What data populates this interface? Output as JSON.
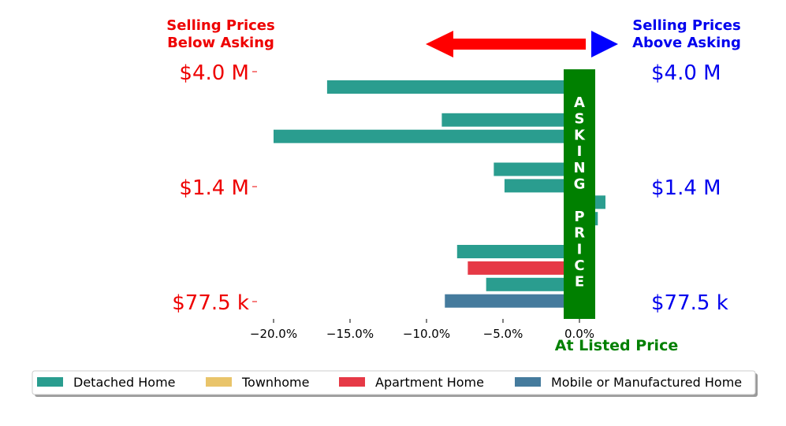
{
  "headers": {
    "below": [
      "Selling Prices",
      "Below Asking"
    ],
    "above": [
      "Selling Prices",
      "Above Asking"
    ],
    "listed": "At Listed Price",
    "asking_letters": [
      "A",
      "S",
      "K",
      "I",
      "N",
      "G",
      "",
      "P",
      "R",
      "I",
      "C",
      "E"
    ]
  },
  "colors": {
    "below": "#ee0000",
    "above": "#0000ee",
    "asking_band": "#008000",
    "detached": "#2a9d8f",
    "townhome": "#e9c46a",
    "apartment": "#e63946",
    "mobile": "#457b9d"
  },
  "price_labels": {
    "left": [
      "$4.0 M",
      "$1.4 M",
      "$77.5 k"
    ],
    "right": [
      "$4.0 M",
      "$1.4 M",
      "$77.5 k"
    ]
  },
  "chart_data": {
    "type": "bar",
    "orientation": "horizontal",
    "xlim": [
      -22.5,
      5
    ],
    "x_ticks": [
      -20,
      -15,
      -10,
      -5,
      0
    ],
    "x_tick_labels": [
      "−20.0%",
      "−15.0%",
      "−10.0%",
      "−5.0%",
      "0.0%"
    ],
    "bars": [
      {
        "value": -16.5,
        "type": "Detached Home"
      },
      {
        "value": 1.0,
        "type": "Apartment Home"
      },
      {
        "value": -9.0,
        "type": "Detached Home"
      },
      {
        "value": -20.0,
        "type": "Detached Home"
      },
      {
        "value": 0.6,
        "type": "Detached Home"
      },
      {
        "value": -5.6,
        "type": "Detached Home"
      },
      {
        "value": -4.9,
        "type": "Detached Home"
      },
      {
        "value": 1.7,
        "type": "Detached Home"
      },
      {
        "value": 1.2,
        "type": "Detached Home"
      },
      {
        "value": -0.6,
        "type": "Townhome"
      },
      {
        "value": -8.0,
        "type": "Detached Home"
      },
      {
        "value": -7.3,
        "type": "Apartment Home"
      },
      {
        "value": -6.1,
        "type": "Detached Home"
      },
      {
        "value": -8.8,
        "type": "Mobile or Manufactured Home"
      }
    ],
    "legend": [
      {
        "name": "Detached Home",
        "color_key": "detached"
      },
      {
        "name": "Townhome",
        "color_key": "townhome"
      },
      {
        "name": "Apartment Home",
        "color_key": "apartment"
      },
      {
        "name": "Mobile or Manufactured Home",
        "color_key": "mobile"
      }
    ],
    "legend_position": "bottom"
  }
}
